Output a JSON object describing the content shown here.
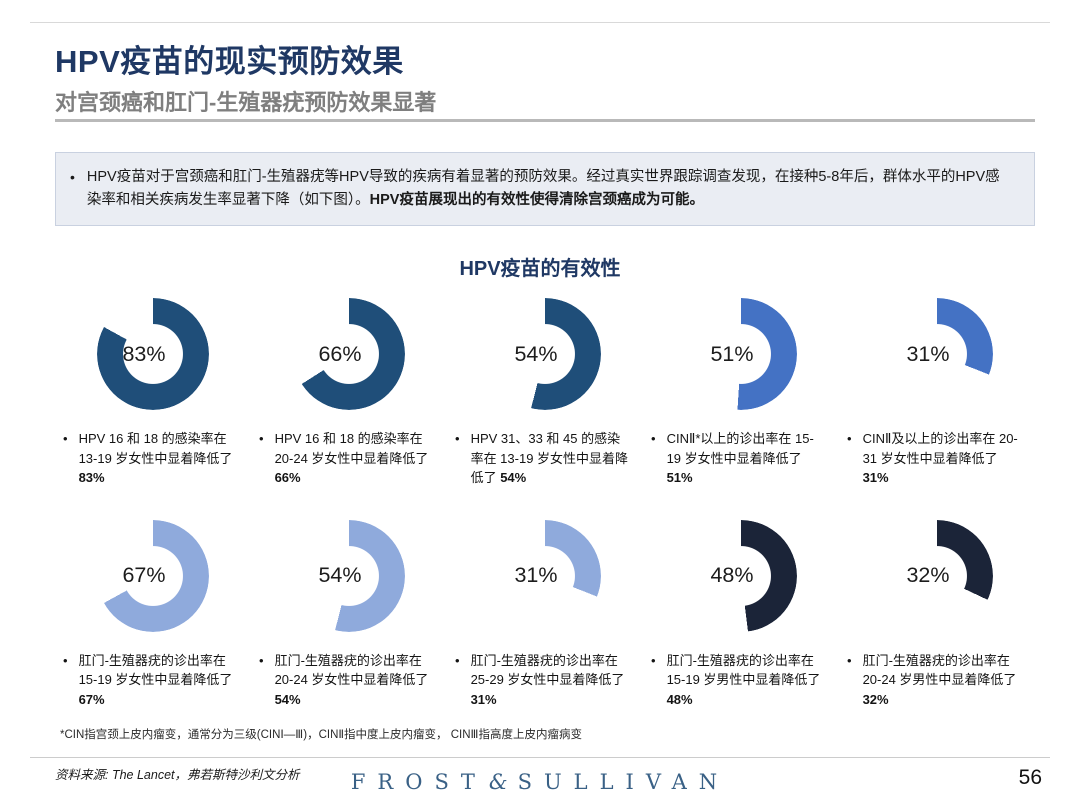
{
  "header": {
    "title": "HPV疫苗的现实预防效果",
    "subtitle": "对宫颈癌和肛门-生殖器疣预防效果显著"
  },
  "bullet_char": "•",
  "intro": {
    "text_normal": "HPV疫苗对于宫颈癌和肛门-生殖器疣等HPV导致的疾病有着显著的预防效果。经过真实世界跟踪调查发现，在接种5-8年后，群体水平的HPV感染率和相关疾病发生率显著下降（如下图）。",
    "text_bold": "HPV疫苗展现出的有效性使得清除宫颈癌成为可能。"
  },
  "chart_data": {
    "type": "pie",
    "variant": "donut-grid",
    "title": "HPV疫苗的有效性",
    "unit": "%",
    "layout": "5 columns x 2 rows, arc starts at 12 o'clock and sweeps clockwise by percent",
    "colors": {
      "dark_blue": "#1F4E79",
      "medium_blue": "#4472C4",
      "light_blue": "#8FAADC",
      "near_black_navy": "#1B2438"
    },
    "items": [
      {
        "percent": 83,
        "label": "83%",
        "color": "#1F4E79",
        "caption": "HPV 16 和 18 的感染率在 13-19 岁女性中显着降低了 ",
        "caption_bold": "83%"
      },
      {
        "percent": 66,
        "label": "66%",
        "color": "#1F4E79",
        "caption": "HPV 16 和 18 的感染率在 20-24 岁女性中显着降低了 ",
        "caption_bold": "66%"
      },
      {
        "percent": 54,
        "label": "54%",
        "color": "#1F4E79",
        "caption": "HPV 31、33 和 45 的感染率在 13-19 岁女性中显着降低了 ",
        "caption_bold": "54%"
      },
      {
        "percent": 51,
        "label": "51%",
        "color": "#4472C4",
        "caption": "CINⅡ*以上的诊出率在 15-19 岁女性中显着降低了 ",
        "caption_bold": "51%"
      },
      {
        "percent": 31,
        "label": "31%",
        "color": "#4472C4",
        "caption": "CINⅡ及以上的诊出率在 20-31 岁女性中显着降低了 ",
        "caption_bold": "31%"
      },
      {
        "percent": 67,
        "label": "67%",
        "color": "#8FAADC",
        "caption": "肛门-生殖器疣的诊出率在 15-19 岁女性中显着降低了 ",
        "caption_bold": "67%"
      },
      {
        "percent": 54,
        "label": "54%",
        "color": "#8FAADC",
        "caption": "肛门-生殖器疣的诊出率在 20-24 岁女性中显着降低了 ",
        "caption_bold": "54%"
      },
      {
        "percent": 31,
        "label": "31%",
        "color": "#8FAADC",
        "caption": "肛门-生殖器疣的诊出率在 25-29 岁女性中显着降低了 ",
        "caption_bold": "31%"
      },
      {
        "percent": 48,
        "label": "48%",
        "color": "#1B2438",
        "caption": "肛门-生殖器疣的诊出率在 15-19 岁男性中显着降低了 ",
        "caption_bold": "48%"
      },
      {
        "percent": 32,
        "label": "32%",
        "color": "#1B2438",
        "caption": "肛门-生殖器疣的诊出率在 20-24 岁男性中显着降低了 ",
        "caption_bold": "32%"
      }
    ]
  },
  "footnote": "*CIN指宫颈上皮内瘤变，通常分为三级(CINⅠ—Ⅲ)，CINⅡ指中度上皮内瘤变， CINⅢ指高度上皮内瘤病变",
  "footer": {
    "source": "资料来源: The Lancet，弗若斯特沙利文分析",
    "logo_left": "FROST",
    "logo_amp": "&",
    "logo_right": "SULLIVAN",
    "page_number": "56"
  }
}
